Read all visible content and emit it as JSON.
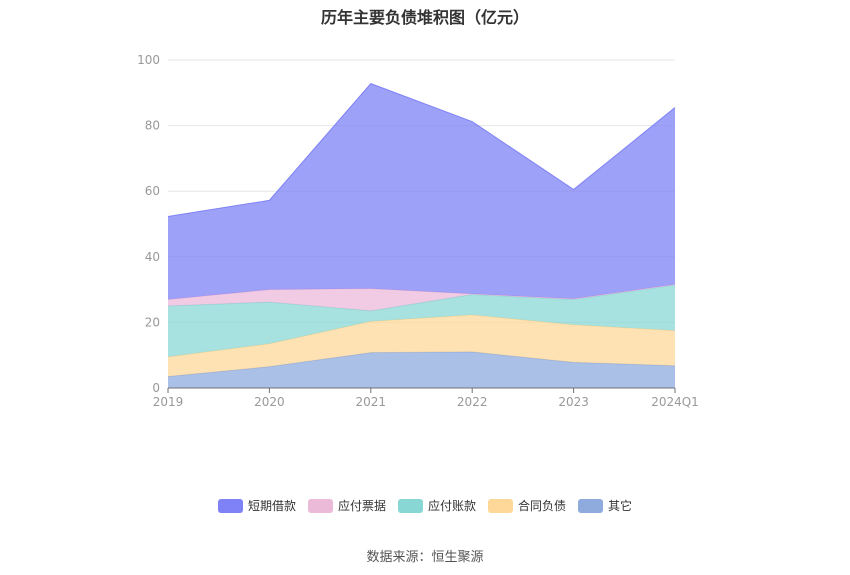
{
  "title": "历年主要负债堆积图（亿元）",
  "source": "数据来源：恒生聚源",
  "chart_data": {
    "type": "area",
    "stacked": true,
    "title": "历年主要负债堆积图（亿元）",
    "categories": [
      "2019",
      "2020",
      "2021",
      "2022",
      "2023",
      "2024Q1"
    ],
    "ylim": [
      0,
      100
    ],
    "yticks": [
      "0",
      "20",
      "40",
      "60",
      "80",
      "100"
    ],
    "grid": true,
    "legend_position": "bottom",
    "series": [
      {
        "name": "其它",
        "color": "#8fabdd",
        "values": [
          3.5,
          6.5,
          10.8,
          11.0,
          7.8,
          6.8
        ]
      },
      {
        "name": "合同负债",
        "color": "#fdd899",
        "values": [
          6.0,
          7.0,
          9.5,
          11.3,
          11.5,
          10.7
        ]
      },
      {
        "name": "应付账款",
        "color": "#89d7d5",
        "values": [
          15.5,
          12.7,
          3.2,
          6.2,
          7.7,
          13.9
        ]
      },
      {
        "name": "应付票据",
        "color": "#ecbad9",
        "values": [
          2.0,
          3.8,
          6.8,
          0.2,
          0.2,
          0.2
        ]
      },
      {
        "name": "短期借款",
        "color": "#7e82f6",
        "values": [
          25.3,
          27.2,
          62.5,
          52.5,
          33.3,
          53.9
        ]
      }
    ]
  }
}
